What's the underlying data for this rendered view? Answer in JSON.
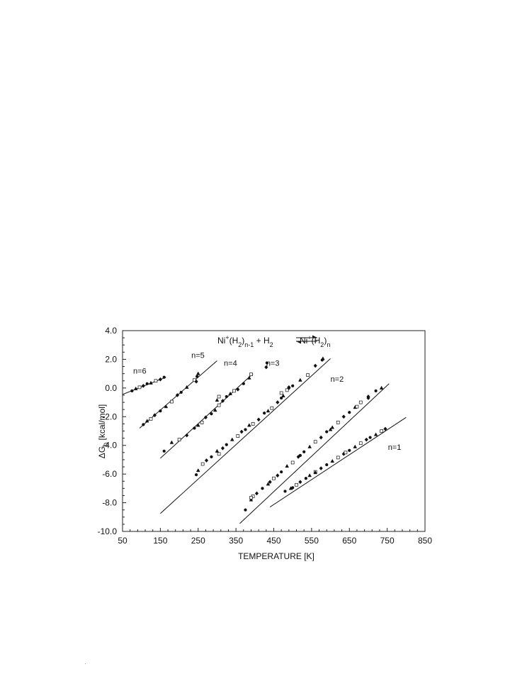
{
  "chart_data": {
    "type": "scatter",
    "title": "",
    "equation": {
      "lhs_species": "Ni",
      "lhs_sup": "+",
      "lhs_paren": "(H",
      "lhs_sub_h": "2",
      "lhs_close": ")",
      "lhs_sub_n": "n-1",
      "plus": " + H",
      "plus_sub": "2",
      "rhs_species": "Ni",
      "rhs_sup": "+",
      "rhs_paren": "(H",
      "rhs_sub_h": "2",
      "rhs_close": ")",
      "rhs_sub_n": "n"
    },
    "xlabel": "TEMPERATURE [K]",
    "ylabel_prefix": "ΔG",
    "ylabel_sub": "0",
    "ylabel_suffix": " [kcal/mol]",
    "xlim": [
      50,
      850
    ],
    "ylim": [
      -10.0,
      4.0
    ],
    "xticks": [
      "50",
      "150",
      "250",
      "350",
      "450",
      "550",
      "650",
      "750",
      "850"
    ],
    "xtick_values": [
      50,
      150,
      250,
      350,
      450,
      550,
      650,
      750,
      850
    ],
    "yticks": [
      "4.0",
      "2.0",
      "0.0",
      "-2.0",
      "-4.0",
      "-6.0",
      "-8.0",
      "-10.0"
    ],
    "ytick_values": [
      4.0,
      2.0,
      0.0,
      -2.0,
      -4.0,
      -6.0,
      -8.0,
      -10.0
    ],
    "grid": false,
    "series": [
      {
        "name": "n=6",
        "label_at": [
          78,
          1.0
        ],
        "fit": [
          [
            50,
            -0.45
          ],
          [
            165,
            0.75
          ]
        ],
        "points": [
          [
            75,
            -0.2
          ],
          [
            85,
            -0.05
          ],
          [
            95,
            0.05
          ],
          [
            105,
            0.15
          ],
          [
            115,
            0.3
          ],
          [
            125,
            0.35
          ],
          [
            138,
            0.5
          ],
          [
            150,
            0.6
          ],
          [
            160,
            0.75
          ]
        ]
      },
      {
        "name": "n=5",
        "label_at": [
          232,
          2.1
        ],
        "fit": [
          [
            95,
            -2.8
          ],
          [
            300,
            1.9
          ]
        ],
        "points": [
          [
            105,
            -2.55
          ],
          [
            115,
            -2.3
          ],
          [
            125,
            -2.15
          ],
          [
            135,
            -1.9
          ],
          [
            150,
            -1.6
          ],
          [
            165,
            -1.3
          ],
          [
            180,
            -0.95
          ],
          [
            195,
            -0.5
          ],
          [
            205,
            -0.3
          ],
          [
            220,
            0.05
          ],
          [
            240,
            0.55
          ],
          [
            245,
            0.45
          ],
          [
            247,
            0.8
          ],
          [
            250,
            1.0
          ]
        ]
      },
      {
        "name": "n=4",
        "label_at": [
          318,
          1.55
        ],
        "fit": [
          [
            150,
            -4.9
          ],
          [
            395,
            1.0
          ]
        ],
        "points": [
          [
            160,
            -4.4
          ],
          [
            180,
            -3.8
          ],
          [
            200,
            -3.6
          ],
          [
            220,
            -3.3
          ],
          [
            240,
            -2.8
          ],
          [
            250,
            -2.6
          ],
          [
            260,
            -2.4
          ],
          [
            270,
            -2.05
          ],
          [
            285,
            -1.8
          ],
          [
            295,
            -1.55
          ],
          [
            305,
            -1.2
          ],
          [
            315,
            -0.9
          ],
          [
            325,
            -0.6
          ],
          [
            335,
            -0.4
          ],
          [
            345,
            -0.2
          ],
          [
            355,
            -0.1
          ],
          [
            370,
            0.3
          ],
          [
            385,
            0.7
          ],
          [
            390,
            0.95
          ],
          [
            430,
            1.45
          ],
          [
            432,
            1.75
          ],
          [
            300,
            -0.85
          ],
          [
            305,
            -0.6
          ]
        ]
      },
      {
        "name": "n=3",
        "label_at": [
          430,
          1.55
        ],
        "fit": [
          [
            150,
            -8.75
          ],
          [
            600,
            2.05
          ]
        ],
        "points": [
          [
            245,
            -6.05
          ],
          [
            250,
            -5.75
          ],
          [
            262,
            -5.3
          ],
          [
            272,
            -5.05
          ],
          [
            285,
            -4.8
          ],
          [
            300,
            -4.4
          ],
          [
            305,
            -4.6
          ],
          [
            315,
            -4.2
          ],
          [
            325,
            -3.95
          ],
          [
            340,
            -3.6
          ],
          [
            355,
            -3.35
          ],
          [
            365,
            -3.05
          ],
          [
            375,
            -2.9
          ],
          [
            385,
            -2.6
          ],
          [
            395,
            -2.5
          ],
          [
            410,
            -2.2
          ],
          [
            425,
            -1.75
          ],
          [
            435,
            -1.6
          ],
          [
            445,
            -1.4
          ],
          [
            460,
            -1.0
          ],
          [
            470,
            -0.7
          ],
          [
            475,
            -0.55
          ],
          [
            485,
            -0.15
          ],
          [
            490,
            0.0
          ],
          [
            500,
            0.15
          ],
          [
            520,
            0.55
          ],
          [
            540,
            0.9
          ],
          [
            560,
            1.55
          ],
          [
            578,
            1.95
          ],
          [
            580,
            2.05
          ],
          [
            470,
            -0.35
          ],
          [
            490,
            0.05
          ]
        ]
      },
      {
        "name": "n=2",
        "label_at": [
          600,
          0.45
        ],
        "fit": [
          [
            360,
            -9.45
          ],
          [
            755,
            0.3
          ]
        ],
        "points": [
          [
            375,
            -8.5
          ],
          [
            390,
            -7.8
          ],
          [
            395,
            -7.55
          ],
          [
            405,
            -7.35
          ],
          [
            420,
            -7.0
          ],
          [
            435,
            -6.7
          ],
          [
            450,
            -6.3
          ],
          [
            460,
            -6.1
          ],
          [
            470,
            -5.85
          ],
          [
            485,
            -5.45
          ],
          [
            500,
            -5.2
          ],
          [
            515,
            -4.8
          ],
          [
            530,
            -4.45
          ],
          [
            545,
            -4.1
          ],
          [
            560,
            -3.75
          ],
          [
            575,
            -3.45
          ],
          [
            590,
            -3.05
          ],
          [
            605,
            -2.75
          ],
          [
            620,
            -2.4
          ],
          [
            635,
            -2.0
          ],
          [
            650,
            -1.7
          ],
          [
            665,
            -1.35
          ],
          [
            680,
            -1.0
          ],
          [
            700,
            -0.6
          ],
          [
            720,
            -0.2
          ],
          [
            735,
            0.0
          ],
          [
            390,
            -7.65
          ],
          [
            440,
            -6.55
          ],
          [
            520,
            -4.7
          ],
          [
            600,
            -2.9
          ],
          [
            670,
            -1.3
          ],
          [
            700,
            -0.7
          ]
        ]
      },
      {
        "name": "n=1",
        "label_at": [
          752,
          -4.3
        ],
        "fit": [
          [
            440,
            -8.3
          ],
          [
            800,
            -2.05
          ]
        ],
        "points": [
          [
            480,
            -7.2
          ],
          [
            495,
            -7.0
          ],
          [
            510,
            -6.75
          ],
          [
            520,
            -6.55
          ],
          [
            535,
            -6.3
          ],
          [
            545,
            -6.1
          ],
          [
            560,
            -5.85
          ],
          [
            575,
            -5.6
          ],
          [
            590,
            -5.35
          ],
          [
            605,
            -5.1
          ],
          [
            620,
            -4.85
          ],
          [
            635,
            -4.6
          ],
          [
            650,
            -4.35
          ],
          [
            665,
            -4.1
          ],
          [
            680,
            -3.85
          ],
          [
            695,
            -3.6
          ],
          [
            705,
            -3.45
          ],
          [
            720,
            -3.25
          ],
          [
            735,
            -3.0
          ],
          [
            745,
            -2.85
          ],
          [
            500,
            -6.95
          ],
          [
            560,
            -5.9
          ],
          [
            640,
            -4.5
          ]
        ]
      }
    ]
  }
}
